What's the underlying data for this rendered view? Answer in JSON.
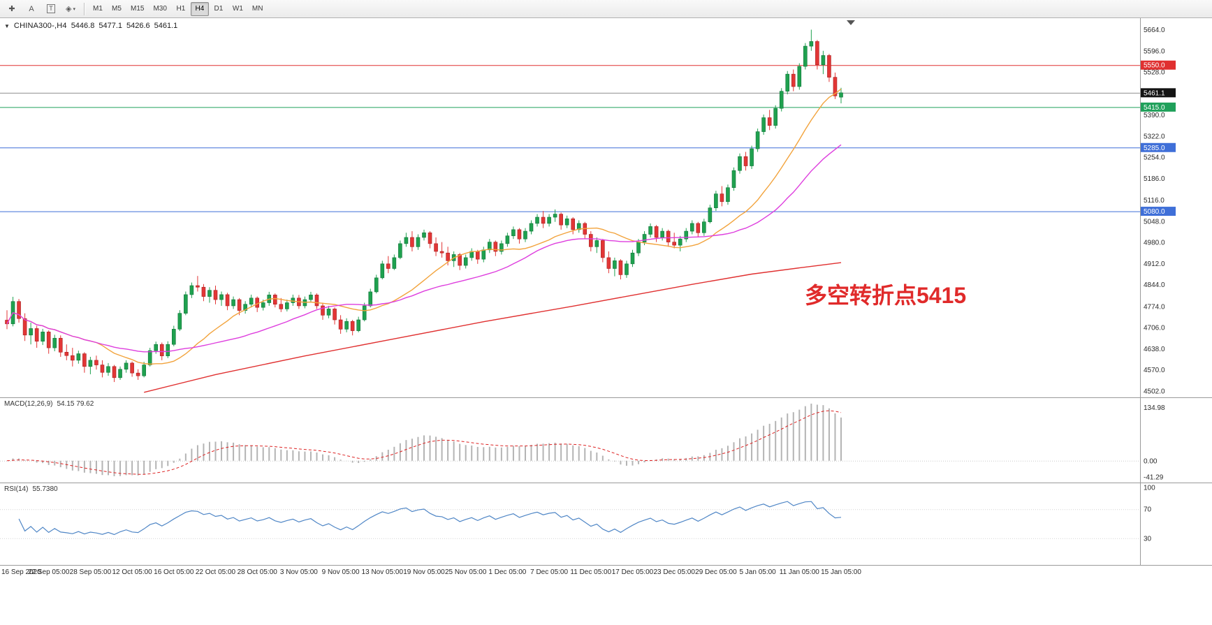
{
  "toolbar": {
    "left_buttons": [
      {
        "name": "crosshair-tool",
        "glyph": "✚",
        "boxed": false,
        "caret": false
      },
      {
        "name": "text-tool",
        "glyph": "A",
        "boxed": false,
        "caret": false
      },
      {
        "name": "textbox-tool",
        "glyph": "T",
        "boxed": true,
        "caret": false
      },
      {
        "name": "shapes-tool",
        "glyph": "◈",
        "boxed": false,
        "caret": true
      }
    ],
    "timeframes": [
      "M1",
      "M5",
      "M15",
      "M30",
      "H1",
      "H4",
      "D1",
      "W1",
      "MN"
    ],
    "active_timeframe": "H4"
  },
  "chart_header": {
    "symbol": "CHINA300-,H4",
    "open": "5446.8",
    "high": "5477.1",
    "low": "5426.6",
    "close": "5461.1"
  },
  "chart_data": {
    "type": "candlestick",
    "title": "CHINA300-,H4",
    "timeframe": "H4",
    "up_color": "#1fa14f",
    "down_color": "#e23636",
    "y_ticks": [
      5664,
      5596,
      5528,
      5390,
      5322,
      5254,
      5186,
      5116,
      5048,
      4980,
      4912,
      4844,
      4774,
      4706,
      4638,
      4570,
      4502
    ],
    "y_range_top": 5701,
    "y_range_bottom": 4484,
    "levels": [
      {
        "value": 5550.0,
        "label": "5550.0",
        "color": "#e03030"
      },
      {
        "value": 5415.0,
        "label": "5415.0",
        "color": "#1fa05a"
      },
      {
        "value": 5285.0,
        "label": "5285.0",
        "color": "#3f6fd8"
      },
      {
        "value": 5080.0,
        "label": "5080.0",
        "color": "#3f6fd8"
      }
    ],
    "current_price": {
      "value": 5461.1,
      "label": "5461.1",
      "line_color": "#8f8f8f",
      "box_color": "#141414"
    },
    "annotation": {
      "text": "多空转折点5415",
      "color": "#e02a2a"
    },
    "x_labels": [
      "16 Sep 2020",
      "22 Sep 05:00",
      "28 Sep 05:00",
      "12 Oct 05:00",
      "16 Oct 05:00",
      "22 Oct 05:00",
      "28 Oct 05:00",
      "3 Nov 05:00",
      "9 Nov 05:00",
      "13 Nov 05:00",
      "19 Nov 05:00",
      "25 Nov 05:00",
      "1 Dec 05:00",
      "7 Dec 05:00",
      "11 Dec 05:00",
      "17 Dec 05:00",
      "23 Dec 05:00",
      "29 Dec 05:00",
      "5 Jan 05:00",
      "11 Jan 05:00",
      "15 Jan 05:00"
    ],
    "ma": {
      "orange": {
        "period": 16,
        "color": "#f2a33c"
      },
      "magenta": {
        "period": 30,
        "color": "#de3ede"
      },
      "red_color": "#e03030"
    },
    "ma_red_anchors": [
      [
        23,
        4498
      ],
      [
        35,
        4555
      ],
      [
        50,
        4615
      ],
      [
        65,
        4670
      ],
      [
        80,
        4725
      ],
      [
        95,
        4775
      ],
      [
        105,
        4810
      ],
      [
        115,
        4845
      ],
      [
        125,
        4878
      ],
      [
        133,
        4898
      ],
      [
        140,
        4915
      ]
    ],
    "candles": [
      [
        4730,
        4762,
        4701,
        4718
      ],
      [
        4718,
        4805,
        4710,
        4790
      ],
      [
        4790,
        4798,
        4722,
        4735
      ],
      [
        4735,
        4752,
        4663,
        4682
      ],
      [
        4682,
        4722,
        4652,
        4703
      ],
      [
        4703,
        4712,
        4641,
        4662
      ],
      [
        4662,
        4702,
        4650,
        4692
      ],
      [
        4692,
        4697,
        4622,
        4641
      ],
      [
        4641,
        4683,
        4630,
        4672
      ],
      [
        4672,
        4681,
        4612,
        4627
      ],
      [
        4627,
        4652,
        4601,
        4616
      ],
      [
        4616,
        4641,
        4581,
        4601
      ],
      [
        4601,
        4632,
        4590,
        4622
      ],
      [
        4622,
        4627,
        4561,
        4581
      ],
      [
        4581,
        4612,
        4556,
        4601
      ],
      [
        4601,
        4616,
        4571,
        4586
      ],
      [
        4586,
        4601,
        4546,
        4562
      ],
      [
        4562,
        4592,
        4551,
        4581
      ],
      [
        4581,
        4586,
        4531,
        4545
      ],
      [
        4545,
        4581,
        4538,
        4572
      ],
      [
        4572,
        4601,
        4561,
        4592
      ],
      [
        4592,
        4597,
        4548,
        4560
      ],
      [
        4560,
        4572,
        4538,
        4551
      ],
      [
        4551,
        4596,
        4546,
        4586
      ],
      [
        4586,
        4641,
        4581,
        4632
      ],
      [
        4632,
        4661,
        4622,
        4652
      ],
      [
        4652,
        4658,
        4601,
        4615
      ],
      [
        4615,
        4662,
        4608,
        4652
      ],
      [
        4652,
        4712,
        4646,
        4701
      ],
      [
        4701,
        4762,
        4695,
        4752
      ],
      [
        4752,
        4822,
        4746,
        4812
      ],
      [
        4812,
        4851,
        4801,
        4841
      ],
      [
        4841,
        4872,
        4822,
        4836
      ],
      [
        4836,
        4846,
        4791,
        4806
      ],
      [
        4806,
        4836,
        4786,
        4826
      ],
      [
        4826,
        4841,
        4781,
        4796
      ],
      [
        4796,
        4822,
        4776,
        4812
      ],
      [
        4812,
        4818,
        4762,
        4776
      ],
      [
        4776,
        4806,
        4766,
        4796
      ],
      [
        4796,
        4801,
        4746,
        4761
      ],
      [
        4761,
        4791,
        4751,
        4781
      ],
      [
        4781,
        4812,
        4771,
        4801
      ],
      [
        4801,
        4806,
        4756,
        4771
      ],
      [
        4771,
        4796,
        4761,
        4786
      ],
      [
        4786,
        4821,
        4776,
        4811
      ],
      [
        4811,
        4816,
        4771,
        4781
      ],
      [
        4781,
        4801,
        4756,
        4766
      ],
      [
        4766,
        4796,
        4758,
        4786
      ],
      [
        4786,
        4812,
        4776,
        4801
      ],
      [
        4801,
        4811,
        4766,
        4776
      ],
      [
        4776,
        4806,
        4768,
        4796
      ],
      [
        4796,
        4821,
        4786,
        4811
      ],
      [
        4811,
        4816,
        4766,
        4776
      ],
      [
        4776,
        4786,
        4731,
        4746
      ],
      [
        4746,
        4776,
        4736,
        4766
      ],
      [
        4766,
        4771,
        4716,
        4731
      ],
      [
        4731,
        4746,
        4686,
        4701
      ],
      [
        4701,
        4736,
        4691,
        4726
      ],
      [
        4726,
        4731,
        4681,
        4696
      ],
      [
        4696,
        4741,
        4691,
        4731
      ],
      [
        4731,
        4786,
        4726,
        4776
      ],
      [
        4776,
        4831,
        4771,
        4821
      ],
      [
        4821,
        4876,
        4816,
        4866
      ],
      [
        4866,
        4921,
        4861,
        4911
      ],
      [
        4911,
        4936,
        4881,
        4896
      ],
      [
        4896,
        4941,
        4891,
        4931
      ],
      [
        4931,
        4986,
        4926,
        4976
      ],
      [
        4976,
        5011,
        4966,
        4996
      ],
      [
        4996,
        5016,
        4951,
        4966
      ],
      [
        4966,
        5006,
        4956,
        4996
      ],
      [
        4996,
        5021,
        4986,
        5011
      ],
      [
        5011,
        5016,
        4961,
        4976
      ],
      [
        4976,
        4996,
        4936,
        4951
      ],
      [
        4951,
        4981,
        4931,
        4946
      ],
      [
        4946,
        4966,
        4906,
        4921
      ],
      [
        4921,
        4951,
        4901,
        4941
      ],
      [
        4941,
        4946,
        4891,
        4906
      ],
      [
        4906,
        4941,
        4896,
        4931
      ],
      [
        4931,
        4961,
        4921,
        4951
      ],
      [
        4951,
        4956,
        4911,
        4926
      ],
      [
        4926,
        4966,
        4916,
        4956
      ],
      [
        4956,
        4991,
        4946,
        4981
      ],
      [
        4981,
        4986,
        4936,
        4951
      ],
      [
        4951,
        4986,
        4941,
        4976
      ],
      [
        4976,
        5011,
        4966,
        5001
      ],
      [
        5001,
        5031,
        4991,
        5021
      ],
      [
        5021,
        5026,
        4976,
        4991
      ],
      [
        4991,
        5026,
        4981,
        5016
      ],
      [
        5016,
        5051,
        5006,
        5041
      ],
      [
        5041,
        5071,
        5031,
        5061
      ],
      [
        5061,
        5081,
        5026,
        5041
      ],
      [
        5041,
        5071,
        5031,
        5061
      ],
      [
        5061,
        5086,
        5046,
        5071
      ],
      [
        5071,
        5076,
        5021,
        5036
      ],
      [
        5036,
        5066,
        5026,
        5056
      ],
      [
        5056,
        5061,
        5006,
        5021
      ],
      [
        5021,
        5051,
        5011,
        5041
      ],
      [
        5041,
        5046,
        4991,
        5006
      ],
      [
        5006,
        5016,
        4951,
        4966
      ],
      [
        4966,
        4996,
        4946,
        4986
      ],
      [
        4986,
        4991,
        4916,
        4931
      ],
      [
        4931,
        4951,
        4881,
        4896
      ],
      [
        4896,
        4931,
        4871,
        4921
      ],
      [
        4921,
        4926,
        4861,
        4876
      ],
      [
        4876,
        4921,
        4866,
        4911
      ],
      [
        4911,
        4956,
        4901,
        4946
      ],
      [
        4946,
        4991,
        4936,
        4981
      ],
      [
        4981,
        5016,
        4971,
        5006
      ],
      [
        5006,
        5041,
        4996,
        5031
      ],
      [
        5031,
        5036,
        4981,
        4996
      ],
      [
        4996,
        5026,
        4986,
        5016
      ],
      [
        5016,
        5021,
        4966,
        4981
      ],
      [
        4981,
        5011,
        4961,
        4971
      ],
      [
        4971,
        5001,
        4951,
        4991
      ],
      [
        4991,
        5026,
        4981,
        5016
      ],
      [
        5016,
        5051,
        5006,
        5041
      ],
      [
        5041,
        5046,
        4996,
        5011
      ],
      [
        5011,
        5056,
        5001,
        5046
      ],
      [
        5046,
        5101,
        5041,
        5091
      ],
      [
        5091,
        5146,
        5081,
        5136
      ],
      [
        5136,
        5161,
        5096,
        5111
      ],
      [
        5111,
        5166,
        5101,
        5156
      ],
      [
        5156,
        5221,
        5146,
        5211
      ],
      [
        5211,
        5266,
        5201,
        5256
      ],
      [
        5256,
        5271,
        5211,
        5226
      ],
      [
        5226,
        5291,
        5216,
        5281
      ],
      [
        5281,
        5346,
        5271,
        5336
      ],
      [
        5336,
        5391,
        5326,
        5381
      ],
      [
        5381,
        5406,
        5341,
        5356
      ],
      [
        5356,
        5421,
        5346,
        5411
      ],
      [
        5411,
        5476,
        5401,
        5466
      ],
      [
        5466,
        5531,
        5456,
        5521
      ],
      [
        5521,
        5536,
        5466,
        5481
      ],
      [
        5481,
        5556,
        5471,
        5546
      ],
      [
        5546,
        5621,
        5536,
        5611
      ],
      [
        5611,
        5664,
        5596,
        5626
      ],
      [
        5626,
        5631,
        5536,
        5551
      ],
      [
        5551,
        5596,
        5521,
        5581
      ],
      [
        5581,
        5586,
        5496,
        5511
      ],
      [
        5511,
        5526,
        5441,
        5451
      ],
      [
        5447,
        5477,
        5427,
        5461
      ]
    ],
    "macd": {
      "name": "MACD(12,26,9)",
      "values": "54.15 79.62",
      "params": [
        12,
        26,
        9
      ],
      "axis_labels": [
        "134.98",
        "0.00",
        "-41.29"
      ],
      "histogram_color": "#b4b4b4",
      "signal_color": "#dd2222"
    },
    "rsi": {
      "name": "RSI(14)",
      "value": "55.7380",
      "period": 14,
      "axis_labels": [
        "100",
        "70",
        "30"
      ],
      "levels": [
        70,
        30
      ],
      "line_color": "#4f86c6"
    }
  }
}
